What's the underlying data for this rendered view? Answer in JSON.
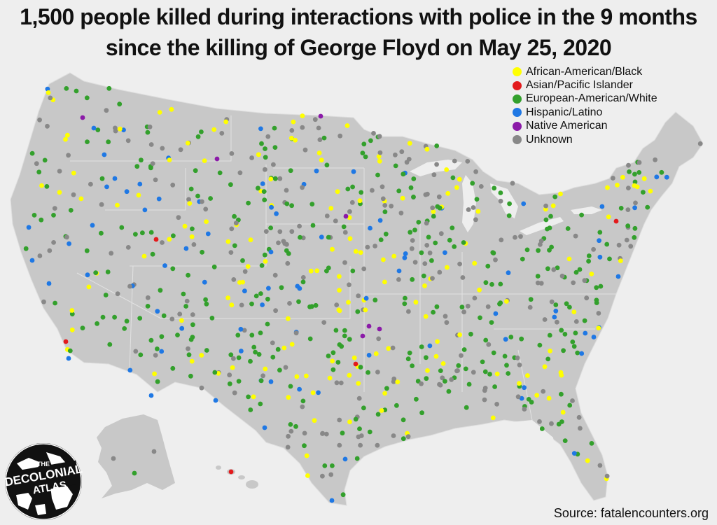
{
  "title": {
    "line1": "1,500 people killed during interactions with police in the 9 months",
    "line2": "since the killing of George Floyd on May 25, 2020"
  },
  "legend": [
    {
      "label": "African-American/Black",
      "color": "#ffff00"
    },
    {
      "label": "Asian/Pacific Islander",
      "color": "#e31a1c"
    },
    {
      "label": "European-American/White",
      "color": "#33a02c"
    },
    {
      "label": "Hispanic/Latino",
      "color": "#1f78e4"
    },
    {
      "label": "Native American",
      "color": "#8b1aa8"
    },
    {
      "label": "Unknown",
      "color": "#888888"
    }
  ],
  "source": "Source: fatalencounters.org",
  "logo": {
    "line1": "THE",
    "line2": "DECOLONIAL",
    "line3": "ATLAS"
  },
  "colors": {
    "land": "#c8c8c8",
    "background": "#eeeeee",
    "border": "#e6e6e6"
  }
}
